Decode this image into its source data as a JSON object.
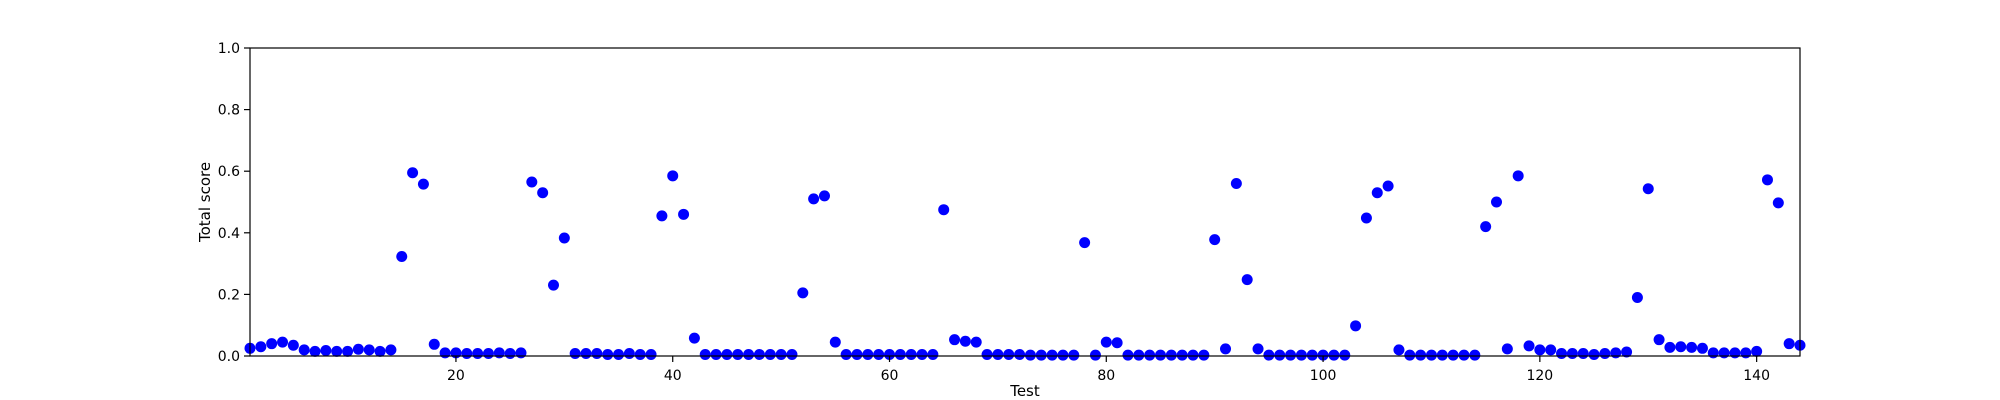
{
  "chart_data": {
    "type": "scatter",
    "xlabel": "Test",
    "ylabel": "Total score",
    "xlim": [
      1,
      144
    ],
    "ylim": [
      0.0,
      1.0
    ],
    "x_ticks": [
      20,
      40,
      60,
      80,
      100,
      120,
      140
    ],
    "y_ticks": [
      0.0,
      0.2,
      0.4,
      0.6,
      0.8,
      1.0
    ],
    "x_tick_labels": [
      "20",
      "40",
      "60",
      "80",
      "100",
      "120",
      "140"
    ],
    "y_tick_labels": [
      "0.0",
      "0.2",
      "0.4",
      "0.6",
      "0.8",
      "1.0"
    ],
    "grid": false,
    "legend": false,
    "color": "#0000ff",
    "x": [
      1,
      2,
      3,
      4,
      5,
      6,
      7,
      8,
      9,
      10,
      11,
      12,
      13,
      14,
      15,
      16,
      17,
      18,
      19,
      20,
      21,
      22,
      23,
      24,
      25,
      26,
      27,
      28,
      29,
      30,
      31,
      32,
      33,
      34,
      35,
      36,
      37,
      38,
      39,
      40,
      41,
      42,
      43,
      44,
      45,
      46,
      47,
      48,
      49,
      50,
      51,
      52,
      53,
      54,
      55,
      56,
      57,
      58,
      59,
      60,
      61,
      62,
      63,
      64,
      65,
      66,
      67,
      68,
      69,
      70,
      71,
      72,
      73,
      74,
      75,
      76,
      77,
      78,
      79,
      80,
      81,
      82,
      83,
      84,
      85,
      86,
      87,
      88,
      89,
      90,
      91,
      92,
      93,
      94,
      95,
      96,
      97,
      98,
      99,
      100,
      101,
      102,
      103,
      104,
      105,
      106,
      107,
      108,
      109,
      110,
      111,
      112,
      113,
      114,
      115,
      116,
      117,
      118,
      119,
      120,
      121,
      122,
      123,
      124,
      125,
      126,
      127,
      128,
      129,
      130,
      131,
      132,
      133,
      134,
      135,
      136,
      137,
      138,
      139,
      140,
      141,
      142,
      143,
      144
    ],
    "y": [
      0.025,
      0.03,
      0.04,
      0.045,
      0.035,
      0.02,
      0.015,
      0.018,
      0.015,
      0.015,
      0.022,
      0.02,
      0.015,
      0.02,
      0.323,
      0.595,
      0.558,
      0.038,
      0.01,
      0.01,
      0.008,
      0.008,
      0.008,
      0.01,
      0.008,
      0.01,
      0.565,
      0.53,
      0.23,
      0.383,
      0.008,
      0.008,
      0.008,
      0.005,
      0.005,
      0.008,
      0.005,
      0.005,
      0.455,
      0.585,
      0.46,
      0.058,
      0.005,
      0.005,
      0.005,
      0.005,
      0.005,
      0.005,
      0.005,
      0.005,
      0.005,
      0.205,
      0.51,
      0.52,
      0.045,
      0.005,
      0.005,
      0.005,
      0.005,
      0.005,
      0.005,
      0.005,
      0.005,
      0.005,
      0.475,
      0.053,
      0.048,
      0.045,
      0.005,
      0.005,
      0.005,
      0.005,
      0.003,
      0.003,
      0.003,
      0.003,
      0.003,
      0.368,
      0.003,
      0.045,
      0.043,
      0.003,
      0.003,
      0.003,
      0.003,
      0.003,
      0.003,
      0.003,
      0.003,
      0.378,
      0.023,
      0.56,
      0.248,
      0.023,
      0.003,
      0.003,
      0.003,
      0.003,
      0.003,
      0.003,
      0.003,
      0.003,
      0.098,
      0.448,
      0.53,
      0.552,
      0.02,
      0.003,
      0.003,
      0.003,
      0.003,
      0.003,
      0.003,
      0.003,
      0.42,
      0.5,
      0.023,
      0.585,
      0.033,
      0.02,
      0.02,
      0.008,
      0.008,
      0.008,
      0.005,
      0.008,
      0.01,
      0.013,
      0.19,
      0.543,
      0.053,
      0.028,
      0.03,
      0.028,
      0.025,
      0.01,
      0.01,
      0.01,
      0.01,
      0.015,
      0.572,
      0.497,
      0.04,
      0.035
    ]
  }
}
